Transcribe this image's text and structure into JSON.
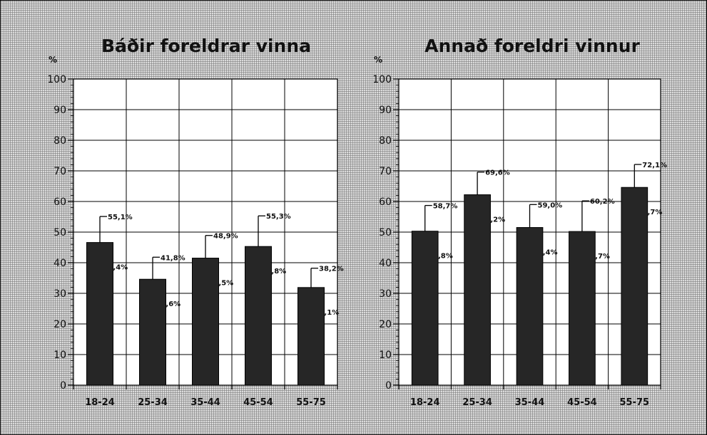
{
  "chart_data": [
    {
      "type": "bar",
      "title": "Báðir foreldrar vinna",
      "ylabel": "%",
      "ylim": [
        0,
        100
      ],
      "yticks": [
        0,
        10,
        20,
        30,
        40,
        50,
        60,
        70,
        80,
        90,
        100
      ],
      "categories": [
        "18-24",
        "25-34",
        "35-44",
        "45-54",
        "55-75"
      ],
      "values": [
        46.6,
        34.6,
        41.5,
        45.3,
        31.9
      ],
      "error_upper": [
        55.1,
        41.8,
        48.9,
        55.3,
        38.2
      ],
      "error_upper_labels": [
        "55,1%",
        "41,8%",
        "48,9%",
        "55,3%",
        "38,2%"
      ],
      "error_lower_labels": [
        "38,4%",
        "27,6%",
        "34,5%",
        "35,8%",
        "25,1%"
      ],
      "bar_color": "#262626",
      "grid": true
    },
    {
      "type": "bar",
      "title": "Annað foreldri vinnur",
      "ylabel": "%",
      "ylim": [
        0,
        100
      ],
      "yticks": [
        0,
        10,
        20,
        30,
        40,
        50,
        60,
        70,
        80,
        90,
        100
      ],
      "categories": [
        "18-24",
        "25-34",
        "35-44",
        "45-54",
        "55-75"
      ],
      "values": [
        50.3,
        62.2,
        51.5,
        50.2,
        64.6
      ],
      "error_upper": [
        58.7,
        69.6,
        59.0,
        60.2,
        72.1
      ],
      "error_upper_labels": [
        "58,7%",
        "69,6%",
        "59,0%",
        "60,2%",
        "72,1%"
      ],
      "error_lower_labels": [
        "41,8%",
        "54,2%",
        "44,4%",
        "39,7%",
        "56,7%"
      ],
      "bar_color": "#262626",
      "grid": true
    }
  ]
}
